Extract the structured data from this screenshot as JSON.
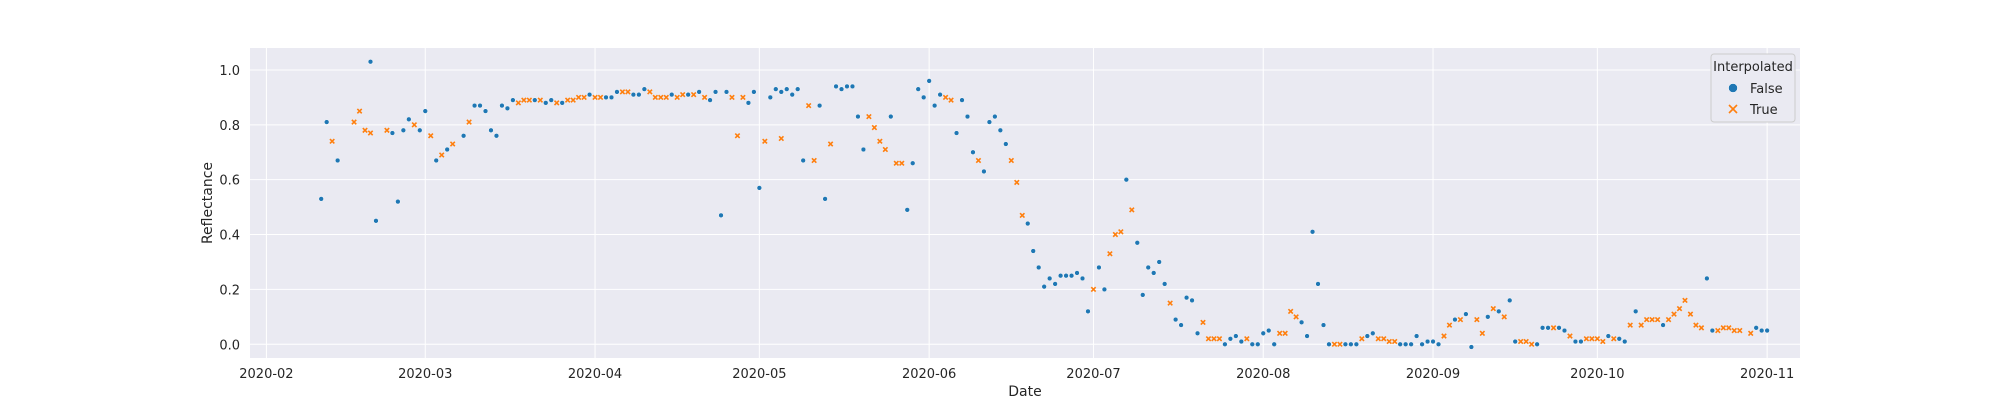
{
  "chart_data": {
    "type": "scatter",
    "title": "",
    "xlabel": "Date",
    "ylabel": "Reflectance",
    "xlim": [
      "2020-01-29",
      "2020-11-07"
    ],
    "ylim": [
      -0.05,
      1.08
    ],
    "x_ticks": [
      "2020-02",
      "2020-03",
      "2020-04",
      "2020-05",
      "2020-06",
      "2020-07",
      "2020-08",
      "2020-09",
      "2020-10",
      "2020-11"
    ],
    "y_ticks": [
      "0.0",
      "0.2",
      "0.4",
      "0.6",
      "0.8",
      "1.0"
    ],
    "grid": true,
    "legend": {
      "title": "Interpolated",
      "placement": "top-right",
      "entries": [
        {
          "label": "False",
          "marker": "circle",
          "color": "#1f77b4"
        },
        {
          "label": "True",
          "marker": "x",
          "color": "#ff7f0e"
        }
      ]
    },
    "colors": {
      "false": "#1f77b4",
      "true": "#ff7f0e",
      "background": "#eaeaf2",
      "grid": "#ffffff"
    },
    "series": [
      {
        "name": "False",
        "points": [
          [
            "2020-02-11",
            0.53
          ],
          [
            "2020-02-12",
            0.81
          ],
          [
            "2020-02-14",
            0.67
          ],
          [
            "2020-02-20",
            1.03
          ],
          [
            "2020-02-21",
            0.45
          ],
          [
            "2020-02-24",
            0.77
          ],
          [
            "2020-02-25",
            0.52
          ],
          [
            "2020-02-26",
            0.78
          ],
          [
            "2020-02-27",
            0.82
          ],
          [
            "2020-02-29",
            0.78
          ],
          [
            "2020-03-01",
            0.85
          ],
          [
            "2020-03-03",
            0.67
          ],
          [
            "2020-03-05",
            0.71
          ],
          [
            "2020-03-08",
            0.76
          ],
          [
            "2020-03-10",
            0.87
          ],
          [
            "2020-03-11",
            0.87
          ],
          [
            "2020-03-12",
            0.85
          ],
          [
            "2020-03-13",
            0.78
          ],
          [
            "2020-03-14",
            0.76
          ],
          [
            "2020-03-15",
            0.87
          ],
          [
            "2020-03-16",
            0.86
          ],
          [
            "2020-03-17",
            0.89
          ],
          [
            "2020-03-21",
            0.89
          ],
          [
            "2020-03-23",
            0.88
          ],
          [
            "2020-03-24",
            0.89
          ],
          [
            "2020-03-26",
            0.88
          ],
          [
            "2020-03-31",
            0.91
          ],
          [
            "2020-04-03",
            0.9
          ],
          [
            "2020-04-04",
            0.9
          ],
          [
            "2020-04-05",
            0.92
          ],
          [
            "2020-04-08",
            0.91
          ],
          [
            "2020-04-09",
            0.91
          ],
          [
            "2020-04-10",
            0.93
          ],
          [
            "2020-04-15",
            0.91
          ],
          [
            "2020-04-18",
            0.91
          ],
          [
            "2020-04-20",
            0.92
          ],
          [
            "2020-04-22",
            0.89
          ],
          [
            "2020-04-23",
            0.92
          ],
          [
            "2020-04-24",
            0.47
          ],
          [
            "2020-04-25",
            0.92
          ],
          [
            "2020-04-29",
            0.88
          ],
          [
            "2020-04-30",
            0.92
          ],
          [
            "2020-05-01",
            0.57
          ],
          [
            "2020-05-03",
            0.9
          ],
          [
            "2020-05-04",
            0.93
          ],
          [
            "2020-05-05",
            0.92
          ],
          [
            "2020-05-06",
            0.93
          ],
          [
            "2020-05-07",
            0.91
          ],
          [
            "2020-05-08",
            0.93
          ],
          [
            "2020-05-09",
            0.67
          ],
          [
            "2020-05-12",
            0.87
          ],
          [
            "2020-05-13",
            0.53
          ],
          [
            "2020-05-15",
            0.94
          ],
          [
            "2020-05-16",
            0.93
          ],
          [
            "2020-05-17",
            0.94
          ],
          [
            "2020-05-18",
            0.94
          ],
          [
            "2020-05-19",
            0.83
          ],
          [
            "2020-05-20",
            0.71
          ],
          [
            "2020-05-25",
            0.83
          ],
          [
            "2020-05-28",
            0.49
          ],
          [
            "2020-05-29",
            0.66
          ],
          [
            "2020-05-30",
            0.93
          ],
          [
            "2020-05-31",
            0.9
          ],
          [
            "2020-06-01",
            0.96
          ],
          [
            "2020-06-02",
            0.87
          ],
          [
            "2020-06-03",
            0.91
          ],
          [
            "2020-06-06",
            0.77
          ],
          [
            "2020-06-07",
            0.89
          ],
          [
            "2020-06-08",
            0.83
          ],
          [
            "2020-06-09",
            0.7
          ],
          [
            "2020-06-11",
            0.63
          ],
          [
            "2020-06-12",
            0.81
          ],
          [
            "2020-06-13",
            0.83
          ],
          [
            "2020-06-14",
            0.78
          ],
          [
            "2020-06-15",
            0.73
          ],
          [
            "2020-06-19",
            0.44
          ],
          [
            "2020-06-20",
            0.34
          ],
          [
            "2020-06-21",
            0.28
          ],
          [
            "2020-06-22",
            0.21
          ],
          [
            "2020-06-23",
            0.24
          ],
          [
            "2020-06-24",
            0.22
          ],
          [
            "2020-06-25",
            0.25
          ],
          [
            "2020-06-26",
            0.25
          ],
          [
            "2020-06-27",
            0.25
          ],
          [
            "2020-06-28",
            0.26
          ],
          [
            "2020-06-29",
            0.24
          ],
          [
            "2020-06-30",
            0.12
          ],
          [
            "2020-07-02",
            0.28
          ],
          [
            "2020-07-03",
            0.2
          ],
          [
            "2020-07-07",
            0.6
          ],
          [
            "2020-07-09",
            0.37
          ],
          [
            "2020-07-10",
            0.18
          ],
          [
            "2020-07-11",
            0.28
          ],
          [
            "2020-07-12",
            0.26
          ],
          [
            "2020-07-13",
            0.3
          ],
          [
            "2020-07-14",
            0.22
          ],
          [
            "2020-07-16",
            0.09
          ],
          [
            "2020-07-17",
            0.07
          ],
          [
            "2020-07-18",
            0.17
          ],
          [
            "2020-07-19",
            0.16
          ],
          [
            "2020-07-20",
            0.04
          ],
          [
            "2020-07-25",
            0.0
          ],
          [
            "2020-07-26",
            0.02
          ],
          [
            "2020-07-27",
            0.03
          ],
          [
            "2020-07-28",
            0.01
          ],
          [
            "2020-07-30",
            0.0
          ],
          [
            "2020-07-31",
            0.0
          ],
          [
            "2020-08-01",
            0.04
          ],
          [
            "2020-08-02",
            0.05
          ],
          [
            "2020-08-03",
            0.0
          ],
          [
            "2020-08-08",
            0.08
          ],
          [
            "2020-08-09",
            0.03
          ],
          [
            "2020-08-10",
            0.41
          ],
          [
            "2020-08-11",
            0.22
          ],
          [
            "2020-08-12",
            0.07
          ],
          [
            "2020-08-13",
            0.0
          ],
          [
            "2020-08-16",
            0.0
          ],
          [
            "2020-08-17",
            0.0
          ],
          [
            "2020-08-18",
            0.0
          ],
          [
            "2020-08-20",
            0.03
          ],
          [
            "2020-08-21",
            0.04
          ],
          [
            "2020-08-26",
            0.0
          ],
          [
            "2020-08-27",
            0.0
          ],
          [
            "2020-08-28",
            0.0
          ],
          [
            "2020-08-29",
            0.03
          ],
          [
            "2020-08-30",
            0.0
          ],
          [
            "2020-08-31",
            0.01
          ],
          [
            "2020-09-01",
            0.01
          ],
          [
            "2020-09-02",
            0.0
          ],
          [
            "2020-09-05",
            0.09
          ],
          [
            "2020-09-07",
            0.11
          ],
          [
            "2020-09-08",
            -0.01
          ],
          [
            "2020-09-11",
            0.1
          ],
          [
            "2020-09-13",
            0.12
          ],
          [
            "2020-09-15",
            0.16
          ],
          [
            "2020-09-16",
            0.01
          ],
          [
            "2020-09-20",
            0.0
          ],
          [
            "2020-09-21",
            0.06
          ],
          [
            "2020-09-22",
            0.06
          ],
          [
            "2020-09-24",
            0.06
          ],
          [
            "2020-09-25",
            0.05
          ],
          [
            "2020-09-27",
            0.01
          ],
          [
            "2020-09-28",
            0.01
          ],
          [
            "2020-10-03",
            0.03
          ],
          [
            "2020-10-05",
            0.02
          ],
          [
            "2020-10-06",
            0.01
          ],
          [
            "2020-10-08",
            0.12
          ],
          [
            "2020-10-13",
            0.07
          ],
          [
            "2020-10-21",
            0.24
          ],
          [
            "2020-10-22",
            0.05
          ],
          [
            "2020-10-30",
            0.06
          ],
          [
            "2020-10-31",
            0.05
          ],
          [
            "2020-11-01",
            0.05
          ]
        ]
      },
      {
        "name": "True",
        "points": [
          [
            "2020-02-13",
            0.74
          ],
          [
            "2020-02-17",
            0.81
          ],
          [
            "2020-02-18",
            0.85
          ],
          [
            "2020-02-19",
            0.78
          ],
          [
            "2020-02-20",
            0.77
          ],
          [
            "2020-02-23",
            0.78
          ],
          [
            "2020-02-28",
            0.8
          ],
          [
            "2020-03-02",
            0.76
          ],
          [
            "2020-03-04",
            0.69
          ],
          [
            "2020-03-06",
            0.73
          ],
          [
            "2020-03-09",
            0.81
          ],
          [
            "2020-03-18",
            0.88
          ],
          [
            "2020-03-19",
            0.89
          ],
          [
            "2020-03-20",
            0.89
          ],
          [
            "2020-03-22",
            0.89
          ],
          [
            "2020-03-25",
            0.88
          ],
          [
            "2020-03-27",
            0.89
          ],
          [
            "2020-03-28",
            0.89
          ],
          [
            "2020-03-29",
            0.9
          ],
          [
            "2020-03-30",
            0.9
          ],
          [
            "2020-04-01",
            0.9
          ],
          [
            "2020-04-02",
            0.9
          ],
          [
            "2020-04-06",
            0.92
          ],
          [
            "2020-04-07",
            0.92
          ],
          [
            "2020-04-11",
            0.92
          ],
          [
            "2020-04-12",
            0.9
          ],
          [
            "2020-04-13",
            0.9
          ],
          [
            "2020-04-14",
            0.9
          ],
          [
            "2020-04-16",
            0.9
          ],
          [
            "2020-04-17",
            0.91
          ],
          [
            "2020-04-19",
            0.91
          ],
          [
            "2020-04-21",
            0.9
          ],
          [
            "2020-04-26",
            0.9
          ],
          [
            "2020-04-27",
            0.76
          ],
          [
            "2020-04-28",
            0.9
          ],
          [
            "2020-05-02",
            0.74
          ],
          [
            "2020-05-05",
            0.75
          ],
          [
            "2020-05-10",
            0.87
          ],
          [
            "2020-05-11",
            0.67
          ],
          [
            "2020-05-14",
            0.73
          ],
          [
            "2020-05-21",
            0.83
          ],
          [
            "2020-05-22",
            0.79
          ],
          [
            "2020-05-23",
            0.74
          ],
          [
            "2020-05-24",
            0.71
          ],
          [
            "2020-05-26",
            0.66
          ],
          [
            "2020-05-27",
            0.66
          ],
          [
            "2020-06-04",
            0.9
          ],
          [
            "2020-06-05",
            0.89
          ],
          [
            "2020-06-10",
            0.67
          ],
          [
            "2020-06-16",
            0.67
          ],
          [
            "2020-06-17",
            0.59
          ],
          [
            "2020-06-18",
            0.47
          ],
          [
            "2020-07-01",
            0.2
          ],
          [
            "2020-07-04",
            0.33
          ],
          [
            "2020-07-05",
            0.4
          ],
          [
            "2020-07-06",
            0.41
          ],
          [
            "2020-07-08",
            0.49
          ],
          [
            "2020-07-15",
            0.15
          ],
          [
            "2020-07-21",
            0.08
          ],
          [
            "2020-07-22",
            0.02
          ],
          [
            "2020-07-23",
            0.02
          ],
          [
            "2020-07-24",
            0.02
          ],
          [
            "2020-07-29",
            0.02
          ],
          [
            "2020-08-04",
            0.04
          ],
          [
            "2020-08-05",
            0.04
          ],
          [
            "2020-08-06",
            0.12
          ],
          [
            "2020-08-07",
            0.1
          ],
          [
            "2020-08-14",
            0.0
          ],
          [
            "2020-08-15",
            0.0
          ],
          [
            "2020-08-19",
            0.02
          ],
          [
            "2020-08-22",
            0.02
          ],
          [
            "2020-08-23",
            0.02
          ],
          [
            "2020-08-24",
            0.01
          ],
          [
            "2020-08-25",
            0.01
          ],
          [
            "2020-09-03",
            0.03
          ],
          [
            "2020-09-04",
            0.07
          ],
          [
            "2020-09-06",
            0.09
          ],
          [
            "2020-09-09",
            0.09
          ],
          [
            "2020-09-10",
            0.04
          ],
          [
            "2020-09-12",
            0.13
          ],
          [
            "2020-09-14",
            0.1
          ],
          [
            "2020-09-17",
            0.01
          ],
          [
            "2020-09-18",
            0.01
          ],
          [
            "2020-09-19",
            0.0
          ],
          [
            "2020-09-23",
            0.06
          ],
          [
            "2020-09-26",
            0.03
          ],
          [
            "2020-09-29",
            0.02
          ],
          [
            "2020-09-30",
            0.02
          ],
          [
            "2020-10-01",
            0.02
          ],
          [
            "2020-10-02",
            0.01
          ],
          [
            "2020-10-04",
            0.02
          ],
          [
            "2020-10-07",
            0.07
          ],
          [
            "2020-10-09",
            0.07
          ],
          [
            "2020-10-10",
            0.09
          ],
          [
            "2020-10-11",
            0.09
          ],
          [
            "2020-10-12",
            0.09
          ],
          [
            "2020-10-14",
            0.09
          ],
          [
            "2020-10-15",
            0.11
          ],
          [
            "2020-10-16",
            0.13
          ],
          [
            "2020-10-17",
            0.16
          ],
          [
            "2020-10-18",
            0.11
          ],
          [
            "2020-10-19",
            0.07
          ],
          [
            "2020-10-20",
            0.06
          ],
          [
            "2020-10-23",
            0.05
          ],
          [
            "2020-10-24",
            0.06
          ],
          [
            "2020-10-25",
            0.06
          ],
          [
            "2020-10-26",
            0.05
          ],
          [
            "2020-10-27",
            0.05
          ],
          [
            "2020-10-29",
            0.04
          ]
        ]
      }
    ]
  }
}
